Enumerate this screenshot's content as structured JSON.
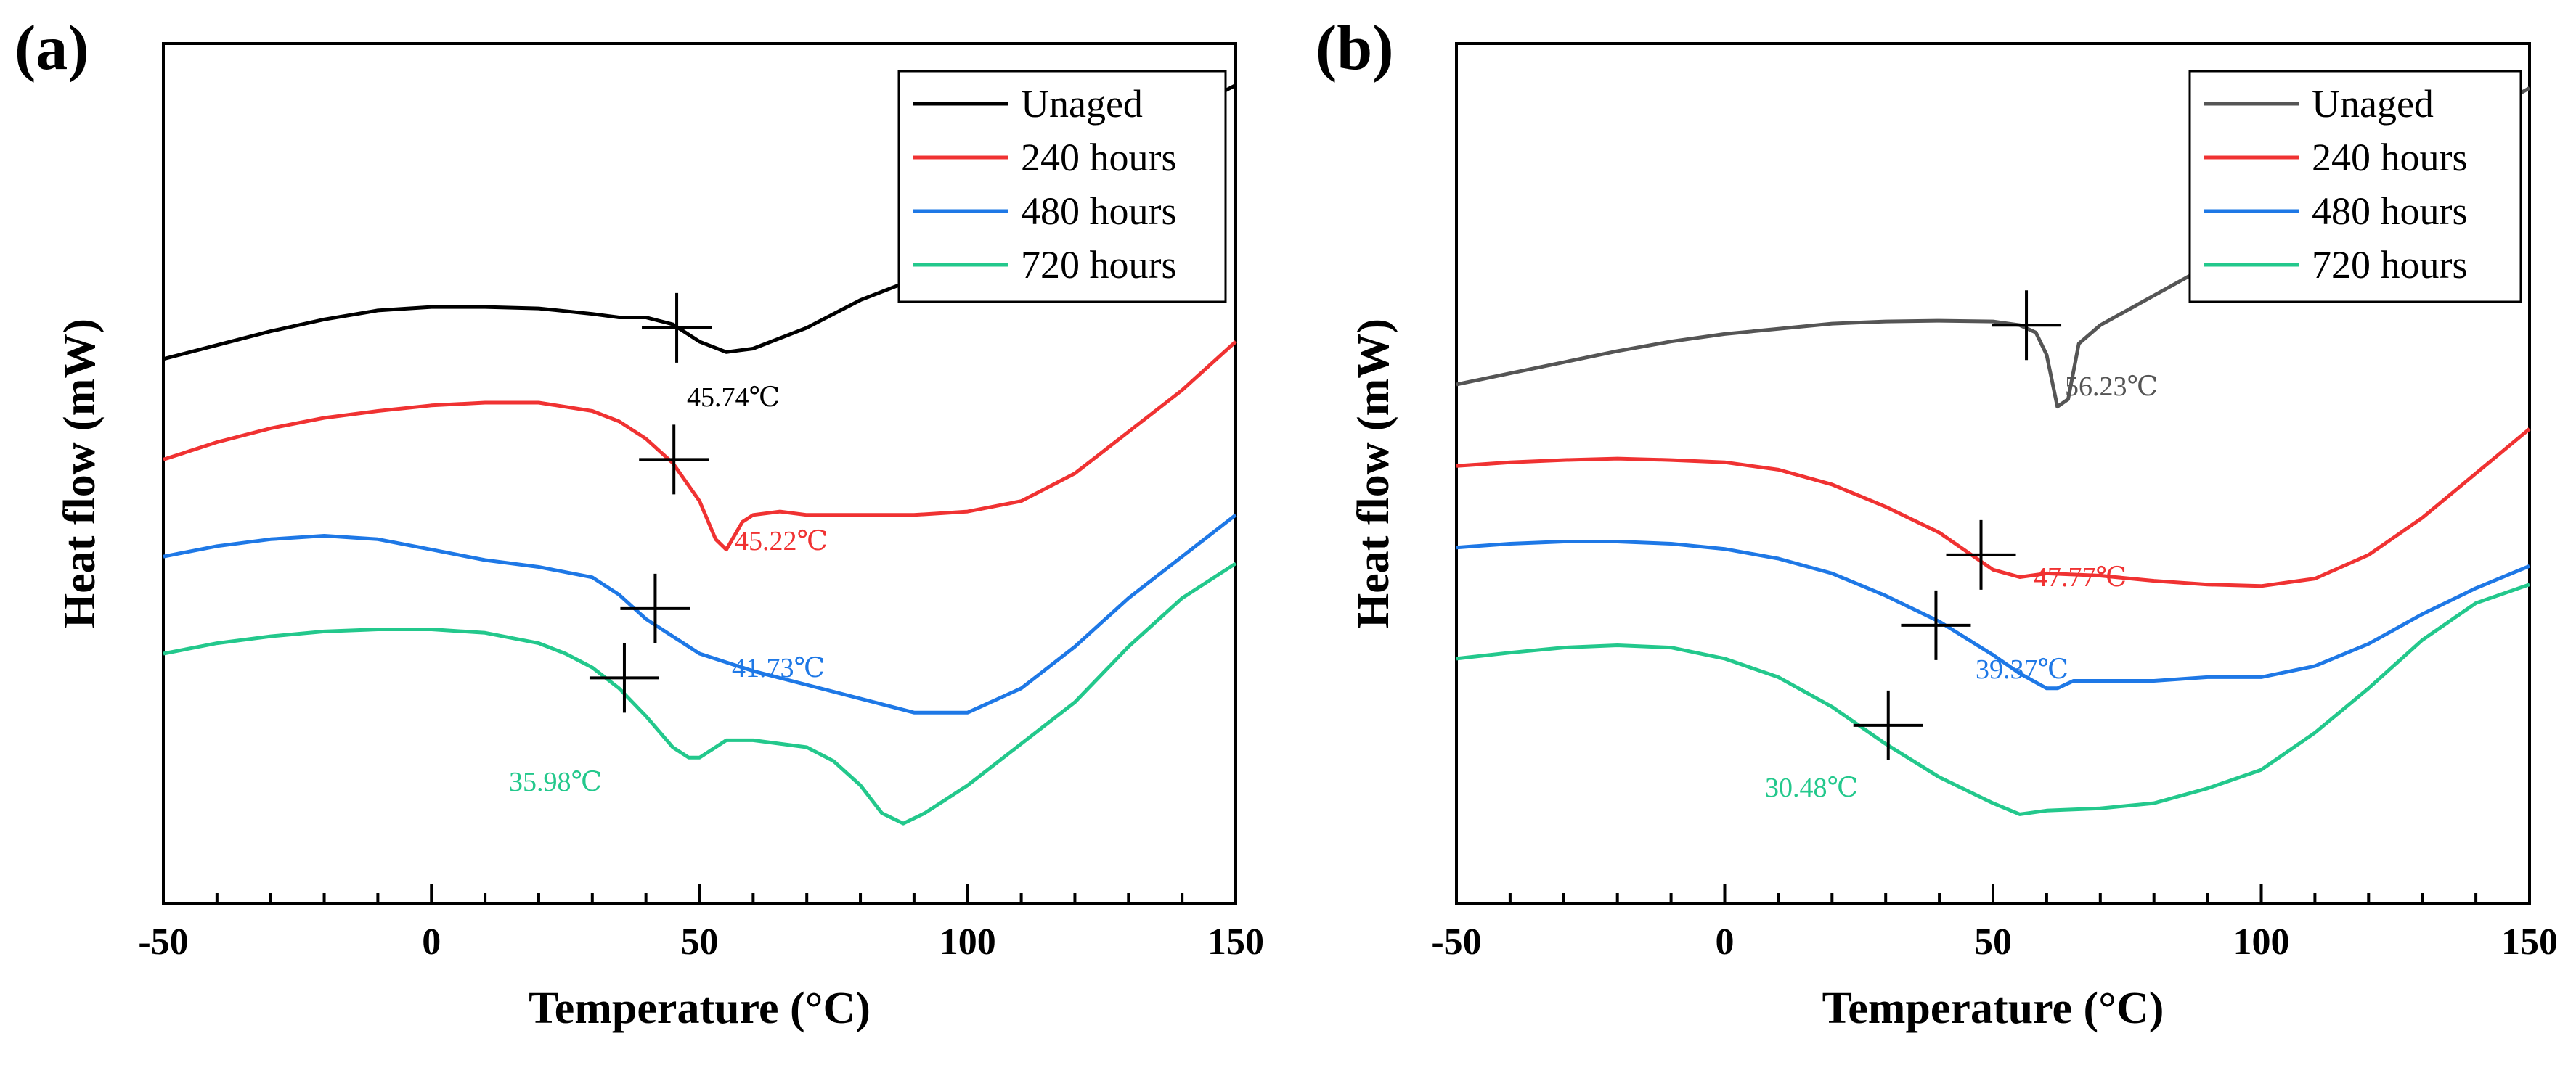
{
  "chart_data": [
    {
      "panel": "(a)",
      "type": "line",
      "xlabel": "Temperature (°C)",
      "ylabel": "Heat flow (mW)",
      "xlim": [
        -50,
        150
      ],
      "xticks": [
        "-50",
        "0",
        "50",
        "100",
        "150"
      ],
      "yticks": "none",
      "legend_position": "top-right",
      "series": [
        {
          "name": "Unaged",
          "color": "#000000",
          "x": [
            -50,
            -40,
            -30,
            -20,
            -10,
            0,
            10,
            20,
            30,
            35,
            40,
            45,
            50,
            55,
            60,
            70,
            80,
            90,
            100,
            110,
            115,
            120,
            130,
            140,
            150
          ],
          "y": [
            -0.95,
            -0.75,
            -0.55,
            -0.38,
            -0.25,
            -0.2,
            -0.2,
            -0.22,
            -0.3,
            -0.35,
            -0.35,
            -0.45,
            -0.7,
            -0.85,
            -0.8,
            -0.5,
            -0.1,
            0.2,
            0.4,
            0.6,
            1.0,
            1.6,
            2.2,
            2.6,
            3.0
          ],
          "annotation": {
            "label": "45.74℃",
            "x": 45.74,
            "y": -0.5
          }
        },
        {
          "name": "240 hours",
          "color": "#f03232",
          "x": [
            -50,
            -40,
            -30,
            -20,
            -10,
            0,
            10,
            20,
            30,
            35,
            40,
            45,
            50,
            53,
            55,
            58,
            60,
            65,
            70,
            80,
            90,
            100,
            110,
            120,
            130,
            140,
            150
          ],
          "y": [
            -2.4,
            -2.15,
            -1.95,
            -1.8,
            -1.7,
            -1.62,
            -1.58,
            -1.58,
            -1.7,
            -1.85,
            -2.1,
            -2.45,
            -3.0,
            -3.55,
            -3.7,
            -3.3,
            -3.2,
            -3.15,
            -3.2,
            -3.2,
            -3.2,
            -3.15,
            -3.0,
            -2.6,
            -2.0,
            -1.4,
            -0.7
          ],
          "annotation": {
            "label": "45.22℃",
            "x": 45.22,
            "y": -2.4
          }
        },
        {
          "name": "480 hours",
          "color": "#1e78e6",
          "x": [
            -50,
            -40,
            -30,
            -20,
            -10,
            0,
            10,
            20,
            30,
            35,
            40,
            45,
            50,
            60,
            70,
            80,
            90,
            100,
            110,
            120,
            130,
            140,
            150
          ],
          "y": [
            -3.8,
            -3.65,
            -3.55,
            -3.5,
            -3.55,
            -3.7,
            -3.85,
            -3.95,
            -4.1,
            -4.35,
            -4.7,
            -4.95,
            -5.2,
            -5.45,
            -5.65,
            -5.85,
            -6.05,
            -6.05,
            -5.7,
            -5.1,
            -4.4,
            -3.8,
            -3.2
          ],
          "annotation": {
            "label": "41.73℃",
            "x": 41.73,
            "y": -4.55
          }
        },
        {
          "name": "720 hours",
          "color": "#23c88c",
          "x": [
            -50,
            -40,
            -30,
            -20,
            -10,
            0,
            10,
            20,
            25,
            30,
            35,
            40,
            45,
            48,
            50,
            55,
            60,
            70,
            75,
            80,
            84,
            88,
            92,
            100,
            110,
            120,
            130,
            140,
            150
          ],
          "y": [
            -5.2,
            -5.05,
            -4.95,
            -4.88,
            -4.85,
            -4.85,
            -4.9,
            -5.05,
            -5.2,
            -5.4,
            -5.7,
            -6.1,
            -6.55,
            -6.7,
            -6.7,
            -6.45,
            -6.45,
            -6.55,
            -6.75,
            -7.1,
            -7.5,
            -7.65,
            -7.5,
            -7.1,
            -6.5,
            -5.9,
            -5.1,
            -4.4,
            -3.9
          ],
          "annotation": {
            "label": "35.98℃",
            "x": 35.98,
            "y": -5.55
          }
        }
      ]
    },
    {
      "panel": "(b)",
      "type": "line",
      "xlabel": "Temperature (°C)",
      "ylabel": "Heat flow (mW)",
      "xlim": [
        -50,
        150
      ],
      "xticks": [
        "-50",
        "0",
        "50",
        "100",
        "150"
      ],
      "yticks": "none",
      "legend_position": "top-right",
      "series": [
        {
          "name": "Unaged",
          "color": "#555555",
          "x": [
            -50,
            -40,
            -30,
            -20,
            -10,
            0,
            10,
            20,
            30,
            40,
            50,
            55,
            58,
            60,
            62,
            64,
            66,
            70,
            80,
            90,
            100,
            110,
            120,
            130,
            140,
            150
          ],
          "y": [
            -1.0,
            -0.85,
            -0.7,
            -0.55,
            -0.42,
            -0.32,
            -0.25,
            -0.18,
            -0.15,
            -0.14,
            -0.15,
            -0.2,
            -0.3,
            -0.6,
            -1.3,
            -1.2,
            -0.45,
            -0.2,
            0.2,
            0.6,
            1.0,
            1.4,
            1.8,
            2.2,
            2.6,
            3.0
          ],
          "annotation": {
            "label": "56.23℃",
            "x": 56.23,
            "y": -0.2
          }
        },
        {
          "name": "240 hours",
          "color": "#f03232",
          "x": [
            -50,
            -40,
            -30,
            -20,
            -10,
            0,
            10,
            20,
            30,
            40,
            45,
            50,
            55,
            60,
            70,
            80,
            90,
            100,
            110,
            120,
            130,
            140,
            150
          ],
          "y": [
            -2.1,
            -2.05,
            -2.02,
            -2.0,
            -2.02,
            -2.05,
            -2.15,
            -2.35,
            -2.65,
            -3.0,
            -3.25,
            -3.5,
            -3.6,
            -3.55,
            -3.58,
            -3.65,
            -3.7,
            -3.72,
            -3.62,
            -3.3,
            -2.8,
            -2.2,
            -1.6
          ],
          "annotation": {
            "label": "47.77℃",
            "x": 47.77,
            "y": -3.3
          }
        },
        {
          "name": "480 hours",
          "color": "#1e78e6",
          "x": [
            -50,
            -40,
            -30,
            -20,
            -10,
            0,
            10,
            20,
            30,
            40,
            50,
            55,
            60,
            62,
            65,
            70,
            80,
            90,
            100,
            110,
            120,
            130,
            140,
            150
          ],
          "y": [
            -3.2,
            -3.15,
            -3.12,
            -3.12,
            -3.15,
            -3.22,
            -3.35,
            -3.55,
            -3.85,
            -4.2,
            -4.65,
            -4.9,
            -5.1,
            -5.1,
            -5.0,
            -5.0,
            -5.0,
            -4.95,
            -4.95,
            -4.8,
            -4.5,
            -4.1,
            -3.75,
            -3.45
          ],
          "annotation": {
            "label": "39.37℃",
            "x": 39.37,
            "y": -4.25
          }
        },
        {
          "name": "720 hours",
          "color": "#23c88c",
          "x": [
            -50,
            -40,
            -30,
            -20,
            -10,
            0,
            10,
            20,
            30,
            40,
            50,
            55,
            60,
            70,
            80,
            90,
            100,
            110,
            120,
            130,
            140,
            150
          ],
          "y": [
            -4.7,
            -4.62,
            -4.55,
            -4.52,
            -4.55,
            -4.7,
            -4.95,
            -5.35,
            -5.85,
            -6.3,
            -6.65,
            -6.8,
            -6.75,
            -6.72,
            -6.65,
            -6.45,
            -6.2,
            -5.7,
            -5.1,
            -4.45,
            -3.95,
            -3.7
          ],
          "annotation": {
            "label": "30.48℃",
            "x": 30.48,
            "y": -5.6
          }
        }
      ]
    }
  ]
}
